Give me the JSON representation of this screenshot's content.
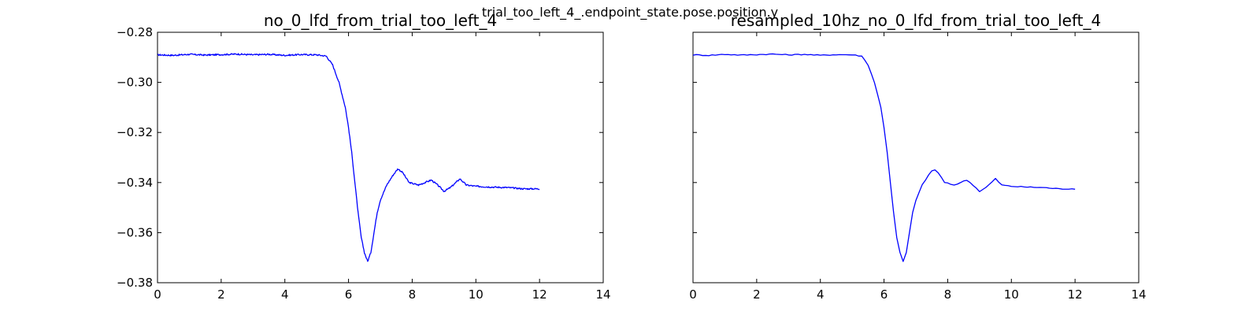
{
  "figure": {
    "suptitle": "trial_too_left_4_.endpoint_state.pose.position.y"
  },
  "chart_data": [
    {
      "type": "line",
      "title": "no_0_lfd_from_trial_too_left_4",
      "xlabel": "",
      "ylabel": "",
      "xlim": [
        0,
        14
      ],
      "ylim": [
        -0.38,
        -0.28
      ],
      "xticks": [
        0,
        2,
        4,
        6,
        8,
        10,
        12,
        14
      ],
      "yticks": [
        -0.28,
        -0.3,
        -0.32,
        -0.34,
        -0.36,
        -0.38
      ],
      "ytick_labels": [
        "−0.28",
        "−0.30",
        "−0.32",
        "−0.34",
        "−0.36",
        "−0.38"
      ],
      "show_ytick_labels": true,
      "grid": false,
      "color": "#0000ff",
      "noise": 0.0006,
      "sample_step": 0.02,
      "series": [
        {
          "x": [
            0,
            0.5,
            1.0,
            1.5,
            2.0,
            2.5,
            3.0,
            3.5,
            4.0,
            4.5,
            5.0,
            5.3,
            5.5,
            5.7,
            5.9,
            6.0,
            6.1,
            6.2,
            6.3,
            6.4,
            6.5,
            6.6,
            6.7,
            6.8,
            6.9,
            7.0,
            7.2,
            7.4,
            7.55,
            7.7,
            7.9,
            8.2,
            8.6,
            8.8,
            9.0,
            9.2,
            9.5,
            9.7,
            10.0,
            10.5,
            11.0,
            11.5,
            12.0
          ],
          "y": [
            -0.289,
            -0.2892,
            -0.2888,
            -0.2891,
            -0.2889,
            -0.2887,
            -0.289,
            -0.2888,
            -0.2892,
            -0.2889,
            -0.289,
            -0.2895,
            -0.293,
            -0.3,
            -0.31,
            -0.318,
            -0.328,
            -0.34,
            -0.352,
            -0.362,
            -0.368,
            -0.3715,
            -0.368,
            -0.36,
            -0.352,
            -0.347,
            -0.341,
            -0.337,
            -0.3345,
            -0.336,
            -0.34,
            -0.341,
            -0.339,
            -0.341,
            -0.3435,
            -0.342,
            -0.3385,
            -0.341,
            -0.3415,
            -0.3418,
            -0.342,
            -0.3425,
            -0.3425
          ]
        }
      ]
    },
    {
      "type": "line",
      "title": "resampled_10hz_no_0_lfd_from_trial_too_left_4",
      "xlabel": "",
      "ylabel": "",
      "xlim": [
        0,
        14
      ],
      "ylim": [
        -0.38,
        -0.28
      ],
      "xticks": [
        0,
        2,
        4,
        6,
        8,
        10,
        12,
        14
      ],
      "yticks": [
        -0.28,
        -0.3,
        -0.32,
        -0.34,
        -0.36,
        -0.38
      ],
      "ytick_labels": [],
      "show_ytick_labels": false,
      "grid": false,
      "color": "#0000ff",
      "noise": 0.0004,
      "sample_step": 0.1,
      "series": [
        {
          "x": [
            0,
            0.5,
            1.0,
            1.5,
            2.0,
            2.5,
            3.0,
            3.5,
            4.0,
            4.5,
            5.0,
            5.3,
            5.5,
            5.7,
            5.9,
            6.0,
            6.1,
            6.2,
            6.3,
            6.4,
            6.5,
            6.6,
            6.7,
            6.8,
            6.9,
            7.0,
            7.2,
            7.4,
            7.55,
            7.7,
            7.9,
            8.2,
            8.6,
            8.8,
            9.0,
            9.2,
            9.5,
            9.7,
            10.0,
            10.5,
            11.0,
            11.5,
            12.0
          ],
          "y": [
            -0.289,
            -0.2892,
            -0.2888,
            -0.2891,
            -0.2889,
            -0.2887,
            -0.289,
            -0.2888,
            -0.2892,
            -0.2889,
            -0.289,
            -0.2895,
            -0.293,
            -0.3,
            -0.31,
            -0.318,
            -0.328,
            -0.34,
            -0.352,
            -0.362,
            -0.368,
            -0.3715,
            -0.368,
            -0.36,
            -0.352,
            -0.347,
            -0.341,
            -0.337,
            -0.3345,
            -0.336,
            -0.34,
            -0.341,
            -0.339,
            -0.341,
            -0.3435,
            -0.342,
            -0.3385,
            -0.341,
            -0.3415,
            -0.3418,
            -0.342,
            -0.3425,
            -0.3425
          ]
        }
      ]
    }
  ]
}
